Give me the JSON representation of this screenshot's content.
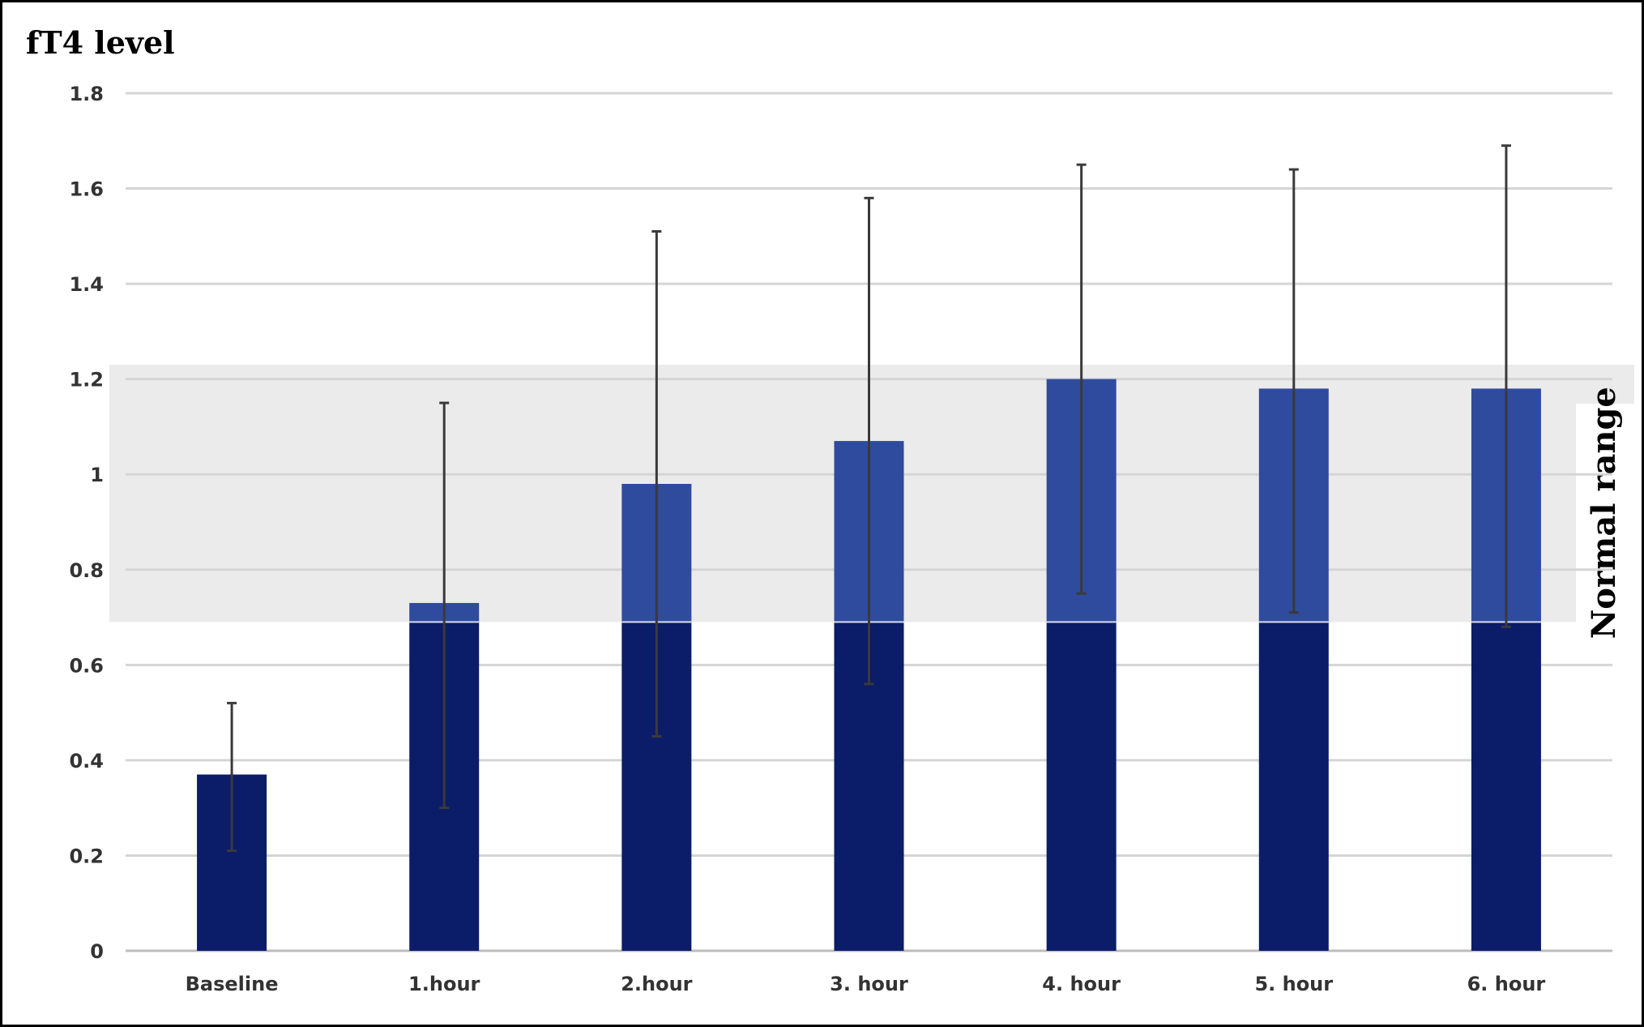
{
  "chart_data": {
    "type": "bar",
    "ylabel": "fT4 level",
    "ylim": [
      0,
      1.8
    ],
    "yticks": [
      "0",
      "0.2",
      "0.4",
      "0.6",
      "0.8",
      "1",
      "1.2",
      "1.4",
      "1.6",
      "1.8"
    ],
    "categories": [
      "Baseline",
      "1.hour",
      "2.hour",
      "3. hour",
      "4. hour",
      "5. hour",
      "6. hour"
    ],
    "values": [
      0.37,
      0.73,
      0.98,
      1.07,
      1.2,
      1.18,
      1.18
    ],
    "error_low": [
      0.21,
      0.3,
      0.45,
      0.56,
      0.75,
      0.71,
      0.68
    ],
    "error_high": [
      0.52,
      1.15,
      1.51,
      1.58,
      1.65,
      1.64,
      1.69
    ],
    "normal_range": {
      "label": "Normal range",
      "low": 0.69,
      "high": 1.23
    },
    "grid": true,
    "colors": {
      "bar_below_range": "#0b1c69",
      "bar_in_range": "#2e4b9e",
      "band": "#ebebeb",
      "grid": "#d5d5d5",
      "error_bar": "#3a3a3a"
    }
  }
}
